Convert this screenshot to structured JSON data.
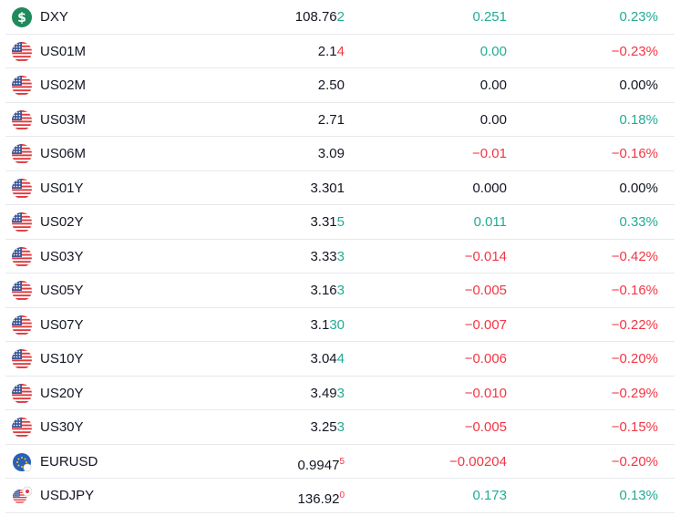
{
  "rows": [
    {
      "symbol": "DXY",
      "icon": "dxy",
      "price": "108.76",
      "price_tail": "2",
      "tail_color": "#22ab94",
      "change": "0.251",
      "change_color": "#22ab94",
      "pct": "0.23%",
      "pct_color": "#22ab94"
    },
    {
      "symbol": "US01M",
      "icon": "us",
      "price": "2.1",
      "price_tail": "4",
      "tail_color": "#f23645",
      "change": "0.00",
      "change_color": "#22ab94",
      "pct": "−0.23%",
      "pct_color": "#f23645"
    },
    {
      "symbol": "US02M",
      "icon": "us",
      "price": "2.50",
      "change": "0.00",
      "change_color": "#131722",
      "pct": "0.00%",
      "pct_color": "#131722"
    },
    {
      "symbol": "US03M",
      "icon": "us",
      "price": "2.71",
      "change": "0.00",
      "change_color": "#131722",
      "pct": "0.18%",
      "pct_color": "#22ab94"
    },
    {
      "symbol": "US06M",
      "icon": "us",
      "price": "3.09",
      "change": "−0.01",
      "change_color": "#f23645",
      "pct": "−0.16%",
      "pct_color": "#f23645"
    },
    {
      "symbol": "US01Y",
      "icon": "us",
      "price": "3.301",
      "change": "0.000",
      "change_color": "#131722",
      "pct": "0.00%",
      "pct_color": "#131722"
    },
    {
      "symbol": "US02Y",
      "icon": "us",
      "price": "3.31",
      "price_tail": "5",
      "tail_color": "#22ab94",
      "change": "0.011",
      "change_color": "#22ab94",
      "pct": "0.33%",
      "pct_color": "#22ab94"
    },
    {
      "symbol": "US03Y",
      "icon": "us",
      "price": "3.33",
      "price_tail": "3",
      "tail_color": "#22ab94",
      "change": "−0.014",
      "change_color": "#f23645",
      "pct": "−0.42%",
      "pct_color": "#f23645"
    },
    {
      "symbol": "US05Y",
      "icon": "us",
      "price": "3.16",
      "price_tail": "3",
      "tail_color": "#22ab94",
      "change": "−0.005",
      "change_color": "#f23645",
      "pct": "−0.16%",
      "pct_color": "#f23645"
    },
    {
      "symbol": "US07Y",
      "icon": "us",
      "price": "3.1",
      "price_tail": "30",
      "tail_color": "#22ab94",
      "change": "−0.007",
      "change_color": "#f23645",
      "pct": "−0.22%",
      "pct_color": "#f23645"
    },
    {
      "symbol": "US10Y",
      "icon": "us",
      "price": "3.04",
      "price_tail": "4",
      "tail_color": "#22ab94",
      "change": "−0.006",
      "change_color": "#f23645",
      "pct": "−0.20%",
      "pct_color": "#f23645"
    },
    {
      "symbol": "US20Y",
      "icon": "us",
      "price": "3.49",
      "price_tail": "3",
      "tail_color": "#22ab94",
      "change": "−0.010",
      "change_color": "#f23645",
      "pct": "−0.29%",
      "pct_color": "#f23645"
    },
    {
      "symbol": "US30Y",
      "icon": "us",
      "price": "3.25",
      "price_tail": "3",
      "tail_color": "#22ab94",
      "change": "−0.005",
      "change_color": "#f23645",
      "pct": "−0.15%",
      "pct_color": "#f23645"
    },
    {
      "symbol": "EURUSD",
      "icon": "eu",
      "price": "0.9947",
      "price_tail": "5",
      "tail_color": "#f23645",
      "tail_sup": true,
      "change": "−0.00204",
      "change_color": "#f23645",
      "pct": "−0.20%",
      "pct_color": "#f23645"
    },
    {
      "symbol": "USDJPY",
      "icon": "jp",
      "price": "136.92",
      "price_tail": "0",
      "tail_color": "#f23645",
      "tail_sup": true,
      "change": "0.173",
      "change_color": "#22ab94",
      "pct": "0.13%",
      "pct_color": "#22ab94"
    }
  ]
}
